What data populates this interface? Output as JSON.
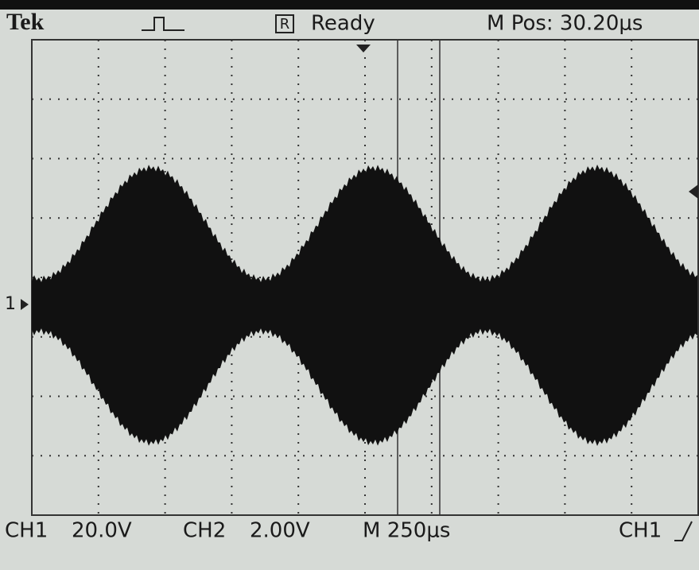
{
  "header": {
    "brand": "Tek",
    "status_icon": "R",
    "status": "Ready",
    "position": "M Pos: 30.20μs"
  },
  "channel_marker": "1",
  "footer": {
    "ch1": "CH1",
    "ch1_scale": "20.0V",
    "ch2": "CH2",
    "ch2_scale": "2.00V",
    "timebase": "M 250μs",
    "trigger_source": "CH1"
  }
}
